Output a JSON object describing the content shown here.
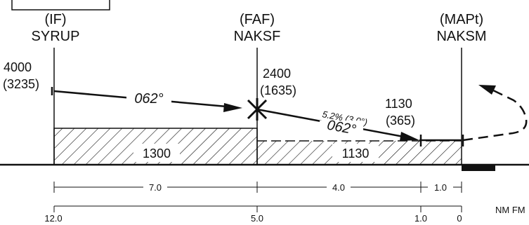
{
  "fixes": [
    {
      "role": "(IF)",
      "name": "SYRUP",
      "altitude": "4000",
      "altitude_hat": "(3235)"
    },
    {
      "role": "(FAF)",
      "name": "NAKSF",
      "altitude": "2400",
      "altitude_hat": "(1635)"
    },
    {
      "role": "(MAPt)",
      "name": "NAKSM"
    }
  ],
  "stepdown": {
    "altitude": "1130",
    "altitude_hat": "(365)"
  },
  "courses": {
    "initial": "062°",
    "final": "062°",
    "glidepath": "5.2% (3.0°)"
  },
  "minimum_altitudes": {
    "initial_segment": "1300",
    "final_segment": "1130"
  },
  "segment_distances": [
    "7.0",
    "4.0",
    "1.0"
  ],
  "distance_scale": [
    "12.0",
    "5.0",
    "1.0",
    "0"
  ],
  "scale_unit": "NM FM",
  "colors": {
    "ink": "#111111",
    "background": "#ffffff"
  }
}
